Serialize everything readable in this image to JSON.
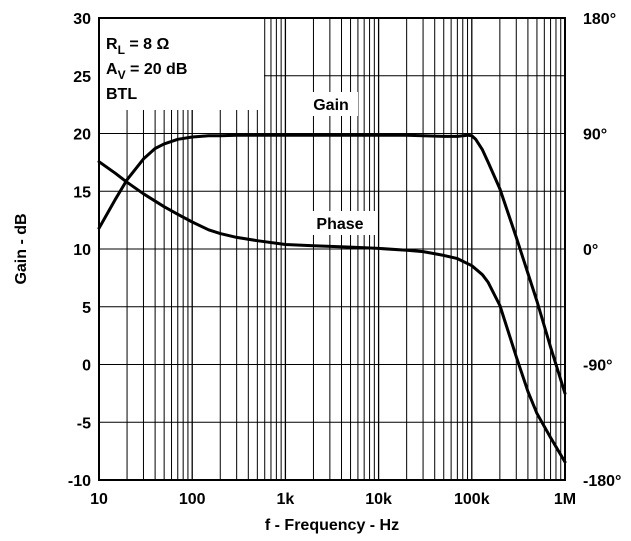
{
  "chart_data": {
    "type": "line",
    "x_scale": "log",
    "xlim": [
      10,
      1000000
    ],
    "ylim": [
      -10,
      30
    ],
    "y2lim": [
      -180,
      180
    ],
    "grid": true,
    "xlabel": "f - Frequency - Hz",
    "ylabel": "Gain - dB",
    "x_ticks": [
      {
        "value": 10,
        "label": "10"
      },
      {
        "value": 100,
        "label": "100"
      },
      {
        "value": 1000,
        "label": "1k"
      },
      {
        "value": 10000,
        "label": "10k"
      },
      {
        "value": 100000,
        "label": "100k"
      },
      {
        "value": 1000000,
        "label": "1M"
      }
    ],
    "y_ticks": [
      {
        "value": 30,
        "label": "30"
      },
      {
        "value": 25,
        "label": "25"
      },
      {
        "value": 20,
        "label": "20"
      },
      {
        "value": 15,
        "label": "15"
      },
      {
        "value": 10,
        "label": "10"
      },
      {
        "value": 5,
        "label": "5"
      },
      {
        "value": 0,
        "label": "0"
      },
      {
        "value": -5,
        "label": "-5"
      },
      {
        "value": -10,
        "label": "-10"
      }
    ],
    "y2_ticks": [
      {
        "value": 180,
        "label": "180°"
      },
      {
        "value": 90,
        "label": "90°"
      },
      {
        "value": 0,
        "label": "0°"
      },
      {
        "value": -90,
        "label": "-90°"
      },
      {
        "value": -180,
        "label": "-180°"
      }
    ],
    "conditions": {
      "rl_main": "R",
      "rl_sub": "L",
      "rl_value": " = 8 Ω",
      "av_main": "A",
      "av_sub": "V",
      "av_value": " = 20 dB",
      "config": "BTL"
    },
    "series": [
      {
        "name": "Gain",
        "axis": "left",
        "x": [
          10,
          15,
          20,
          30,
          40,
          50,
          70,
          100,
          150,
          200,
          300,
          500,
          1000,
          2000,
          5000,
          10000,
          20000,
          50000,
          70000,
          90000,
          100000,
          110000,
          130000,
          150000,
          200000,
          300000,
          500000,
          700000,
          1000000
        ],
        "y": [
          11.8,
          14.3,
          16.0,
          17.8,
          18.7,
          19.1,
          19.5,
          19.7,
          19.8,
          19.8,
          19.85,
          19.85,
          19.85,
          19.85,
          19.85,
          19.85,
          19.85,
          19.75,
          19.75,
          19.85,
          19.8,
          19.5,
          18.6,
          17.5,
          15.2,
          11.0,
          5.5,
          1.5,
          -2.5
        ]
      },
      {
        "name": "Phase",
        "axis": "right",
        "x": [
          10,
          15,
          20,
          30,
          50,
          70,
          100,
          150,
          200,
          300,
          500,
          1000,
          2000,
          5000,
          10000,
          20000,
          30000,
          50000,
          70000,
          100000,
          130000,
          150000,
          200000,
          300000,
          400000,
          500000,
          700000,
          1000000
        ],
        "y": [
          68,
          59,
          52,
          43,
          33,
          27,
          21,
          15,
          12,
          9,
          6.5,
          3.5,
          2.5,
          1.5,
          0.5,
          -1,
          -2,
          -5,
          -7.5,
          -13,
          -20,
          -26,
          -44,
          -84,
          -111,
          -128,
          -147,
          -166
        ]
      }
    ]
  }
}
